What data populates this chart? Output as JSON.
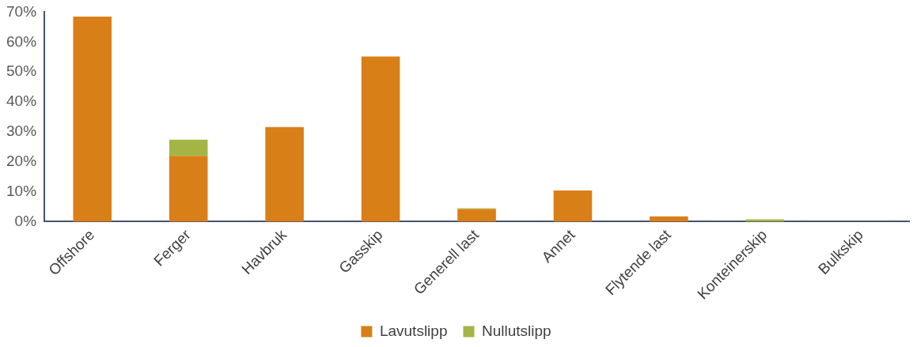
{
  "chart_data": {
    "type": "bar",
    "stacked": true,
    "categories": [
      "Offshore",
      "Ferger",
      "Havbruk",
      "Gasskip",
      "Generell last",
      "Annet",
      "Flytende last",
      "Konteinerskip",
      "Bulkskip"
    ],
    "series": [
      {
        "name": "Lavutslipp",
        "color": "#d97f17",
        "values": [
          68.5,
          22,
          31.6,
          55.2,
          4.2,
          10.4,
          1.8,
          0,
          0
        ]
      },
      {
        "name": "Nullutslipp",
        "color": "#a5b545",
        "values": [
          0,
          5.4,
          0,
          0,
          0.3,
          0,
          0,
          0.8,
          0
        ]
      }
    ],
    "ylim": [
      0,
      70
    ],
    "yticks": [
      {
        "value": 0,
        "label": "0%"
      },
      {
        "value": 10,
        "label": "10%"
      },
      {
        "value": 20,
        "label": "20%"
      },
      {
        "value": 30,
        "label": "30%"
      },
      {
        "value": 40,
        "label": "40%"
      },
      {
        "value": 50,
        "label": "50%"
      },
      {
        "value": 60,
        "label": "60%"
      },
      {
        "value": 70,
        "label": "70%"
      }
    ],
    "grid": false,
    "legend": "bottom"
  }
}
